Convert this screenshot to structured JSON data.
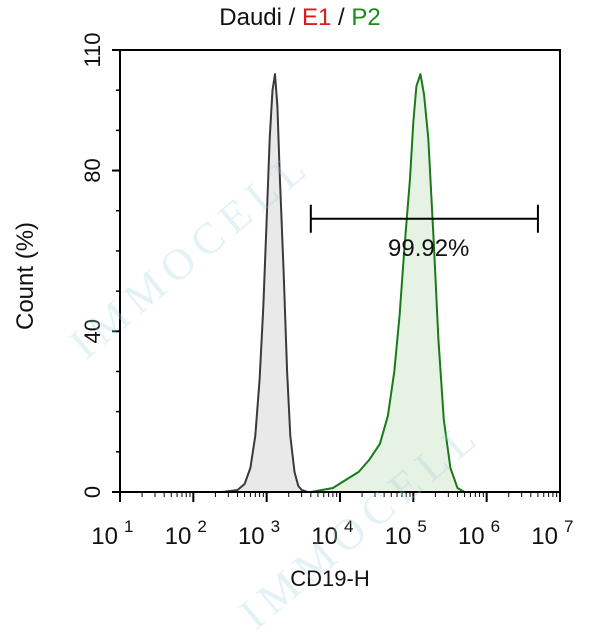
{
  "title": {
    "sample": "Daudi",
    "separator": " / ",
    "e1": "E1",
    "p2": "P2",
    "e1_color": "#e0191b",
    "p2_color": "#1a8a1a"
  },
  "watermark": "IMMOCELL",
  "chart_data": {
    "type": "area",
    "xlabel": "CD19-H",
    "ylabel": "Count  (%)",
    "x_scale": "log",
    "xlim": [
      10,
      10000000
    ],
    "ylim": [
      0,
      110
    ],
    "y_ticks": [
      0,
      40,
      80,
      110
    ],
    "x_ticks": [
      {
        "base": "10",
        "exp": "1"
      },
      {
        "base": "10",
        "exp": "2"
      },
      {
        "base": "10",
        "exp": "3"
      },
      {
        "base": "10",
        "exp": "4"
      },
      {
        "base": "10",
        "exp": "5"
      },
      {
        "base": "10",
        "exp": "6"
      },
      {
        "base": "10",
        "exp": "7"
      }
    ],
    "grid": false,
    "series": [
      {
        "name": "E1",
        "color": "#3a3a3a",
        "fill": "#e9e9e9",
        "x": [
          250,
          400,
          500,
          600,
          700,
          800,
          900,
          1000,
          1100,
          1200,
          1300,
          1400,
          1500,
          1700,
          1900,
          2100,
          2400,
          2700,
          3000,
          3600
        ],
        "y": [
          0,
          0.5,
          2,
          6,
          14,
          28,
          46,
          68,
          88,
          100,
          104,
          96,
          80,
          55,
          30,
          14,
          5,
          1.5,
          0.5,
          0
        ]
      },
      {
        "name": "P2",
        "color": "#1a7a1a",
        "fill": "#e6f2e4",
        "x": [
          4000,
          8000,
          12000,
          18000,
          25000,
          35000,
          45000,
          55000,
          65000,
          75000,
          90000,
          100000,
          110000,
          125000,
          140000,
          160000,
          190000,
          220000,
          260000,
          320000,
          400000,
          500000
        ],
        "y": [
          0,
          1,
          3,
          5,
          8,
          12,
          19,
          30,
          44,
          60,
          78,
          92,
          101,
          104,
          99,
          88,
          62,
          38,
          18,
          6,
          1,
          0
        ]
      }
    ],
    "annotations": [
      {
        "type": "gate",
        "label": "99.92%",
        "x_start": 4000,
        "x_end": 5000000,
        "y": 68
      }
    ]
  }
}
